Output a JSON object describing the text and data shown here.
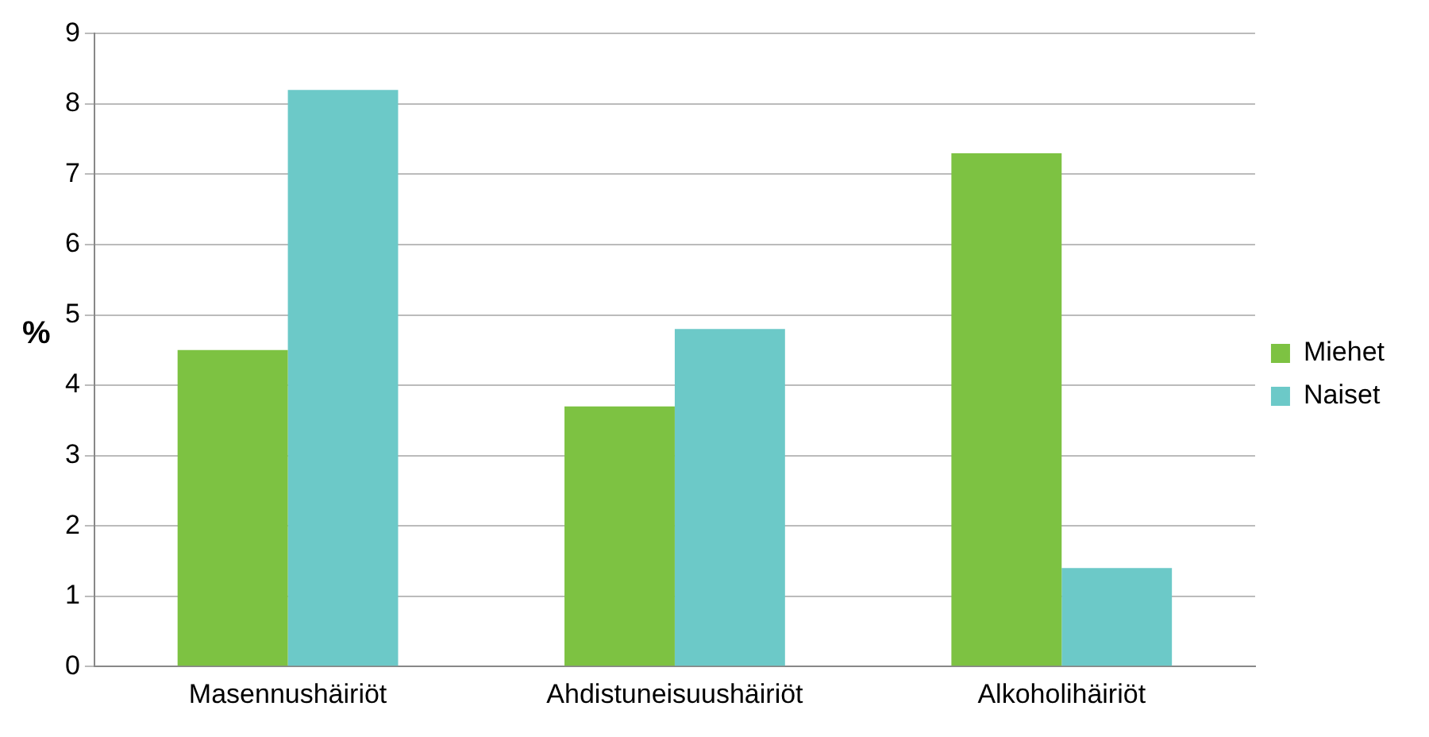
{
  "chart_data": {
    "type": "bar",
    "ylabel": "%",
    "categories": [
      "Masennushäiriöt",
      "Ahdistuneisuushäiriöt",
      "Alkoholihäiriöt"
    ],
    "series": [
      {
        "name": "Miehet",
        "color": "#7dc242",
        "values": [
          4.5,
          3.7,
          7.3
        ]
      },
      {
        "name": "Naiset",
        "color": "#6cc9c8",
        "values": [
          8.2,
          4.8,
          1.4
        ]
      }
    ],
    "ylim": [
      0,
      9
    ],
    "yticks": [
      0,
      1,
      2,
      3,
      4,
      5,
      6,
      7,
      8,
      9
    ],
    "grid": "y",
    "legend": "right"
  }
}
